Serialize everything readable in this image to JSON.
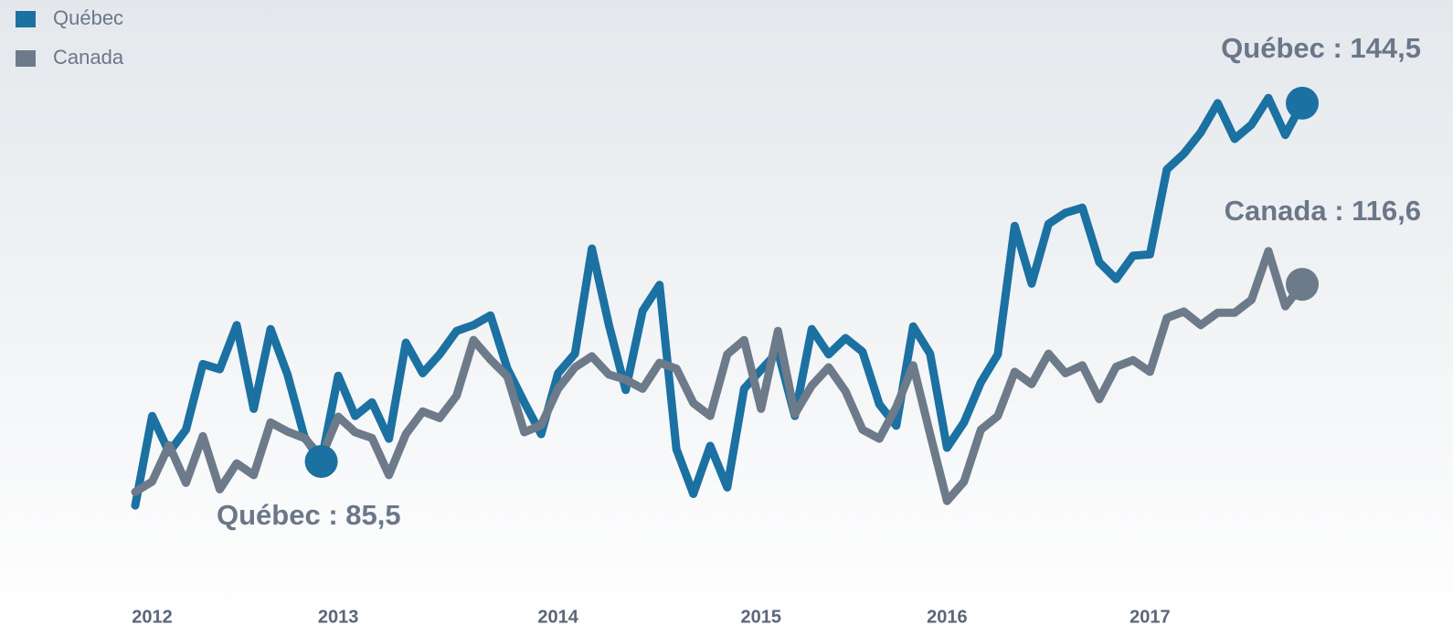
{
  "chart_data": {
    "type": "line",
    "categories": [
      null,
      "2012",
      null,
      null,
      null,
      null,
      null,
      null,
      null,
      null,
      null,
      null,
      "2013",
      null,
      null,
      null,
      null,
      null,
      null,
      null,
      null,
      null,
      null,
      null,
      null,
      "2014",
      null,
      null,
      null,
      null,
      null,
      null,
      null,
      null,
      null,
      null,
      null,
      "2015",
      null,
      null,
      null,
      null,
      null,
      null,
      null,
      null,
      null,
      null,
      "2016",
      null,
      null,
      null,
      null,
      null,
      null,
      null,
      null,
      null,
      null,
      null,
      "2017",
      null,
      null,
      null,
      null,
      null,
      null,
      null,
      null,
      null
    ],
    "series": [
      {
        "name": "Québec",
        "color": "#1b71a1",
        "values": [
          82.5,
          96.3,
          90.7,
          94.2,
          104.3,
          103.5,
          110.3,
          97.4,
          109.7,
          102.7,
          93.1,
          89.3,
          102.5,
          96.3,
          98.4,
          92.8,
          107.6,
          102.9,
          105.8,
          109.4,
          110.3,
          111.8,
          103.6,
          98.4,
          93.5,
          102.9,
          105.9,
          122.1,
          110.4,
          100.3,
          112.5,
          116.5,
          91.2,
          84.3,
          91.7,
          85.3,
          100.5,
          103.4,
          106.2,
          96.3,
          109.7,
          105.8,
          108.3,
          106.2,
          98.1,
          94.8,
          110.1,
          105.9,
          91.4,
          95.3,
          101.5,
          105.8,
          125.6,
          116.7,
          125.9,
          127.6,
          128.4,
          120.0,
          117.4,
          121.0,
          121.2,
          134.3,
          136.7,
          140.0,
          144.5,
          139.0,
          141.2,
          145.3,
          139.6,
          144.5
        ]
      },
      {
        "name": "Canada",
        "color": "#6d7a8a",
        "values": [
          84.6,
          86.2,
          91.8,
          86.0,
          93.2,
          85.0,
          89.0,
          87.2,
          95.3,
          93.9,
          92.9,
          90.0,
          96.2,
          93.8,
          92.9,
          87.2,
          93.5,
          97.0,
          96.0,
          99.4,
          108.0,
          105.0,
          102.4,
          93.8,
          94.9,
          100.5,
          103.8,
          105.5,
          102.7,
          101.9,
          100.5,
          104.5,
          103.6,
          98.3,
          96.3,
          105.8,
          108.0,
          97.4,
          109.4,
          96.6,
          101.0,
          103.8,
          100.1,
          94.2,
          92.8,
          97.7,
          104.1,
          93.5,
          83.2,
          86.2,
          94.2,
          96.3,
          103.1,
          101.2,
          105.9,
          102.9,
          104.1,
          98.9,
          103.9,
          104.9,
          103.1,
          111.4,
          112.4,
          110.3,
          112.2,
          112.2,
          114.2,
          121.7,
          113.2,
          116.6
        ]
      }
    ],
    "annotations": [
      "Québec : 144,5",
      "Canada : 116,6",
      "Québec : 85,5"
    ],
    "ylim": [
      62.4,
      160.4
    ],
    "legend": "top-left"
  }
}
